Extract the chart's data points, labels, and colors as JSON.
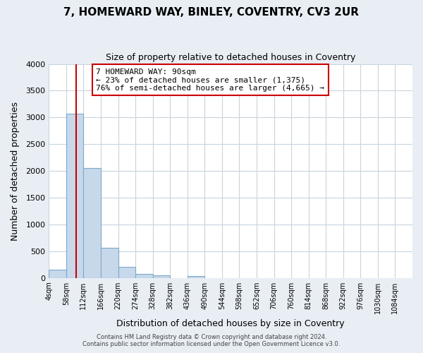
{
  "title": "7, HOMEWARD WAY, BINLEY, COVENTRY, CV3 2UR",
  "subtitle": "Size of property relative to detached houses in Coventry",
  "xlabel": "Distribution of detached houses by size in Coventry",
  "ylabel": "Number of detached properties",
  "bar_color": "#c8d8eb",
  "bar_edge_color": "#7aaac8",
  "bin_starts": [
    4,
    58,
    112,
    166,
    220,
    274,
    328,
    382,
    436,
    490,
    544,
    598,
    652,
    706,
    760,
    814,
    868,
    922,
    976,
    1030
  ],
  "bin_width": 54,
  "bar_values": [
    150,
    3070,
    2060,
    560,
    205,
    75,
    45,
    0,
    30,
    0,
    0,
    0,
    0,
    0,
    0,
    0,
    0,
    0,
    0,
    0
  ],
  "tick_labels": [
    "4sqm",
    "58sqm",
    "112sqm",
    "166sqm",
    "220sqm",
    "274sqm",
    "328sqm",
    "382sqm",
    "436sqm",
    "490sqm",
    "544sqm",
    "598sqm",
    "652sqm",
    "706sqm",
    "760sqm",
    "814sqm",
    "868sqm",
    "922sqm",
    "976sqm",
    "1030sqm",
    "1084sqm"
  ],
  "ylim": [
    0,
    4000
  ],
  "yticks": [
    0,
    500,
    1000,
    1500,
    2000,
    2500,
    3000,
    3500,
    4000
  ],
  "property_line_x": 90,
  "annotation_text": "7 HOMEWARD WAY: 90sqm\n← 23% of detached houses are smaller (1,375)\n76% of semi-detached houses are larger (4,665) →",
  "annotation_box_color": "#ffffff",
  "annotation_border_color": "#cc0000",
  "red_line_color": "#cc0000",
  "footer_line1": "Contains HM Land Registry data © Crown copyright and database right 2024.",
  "footer_line2": "Contains public sector information licensed under the Open Government Licence v3.0.",
  "background_color": "#e8eef4",
  "plot_bg_color": "#ffffff",
  "grid_color": "#c8d4de"
}
